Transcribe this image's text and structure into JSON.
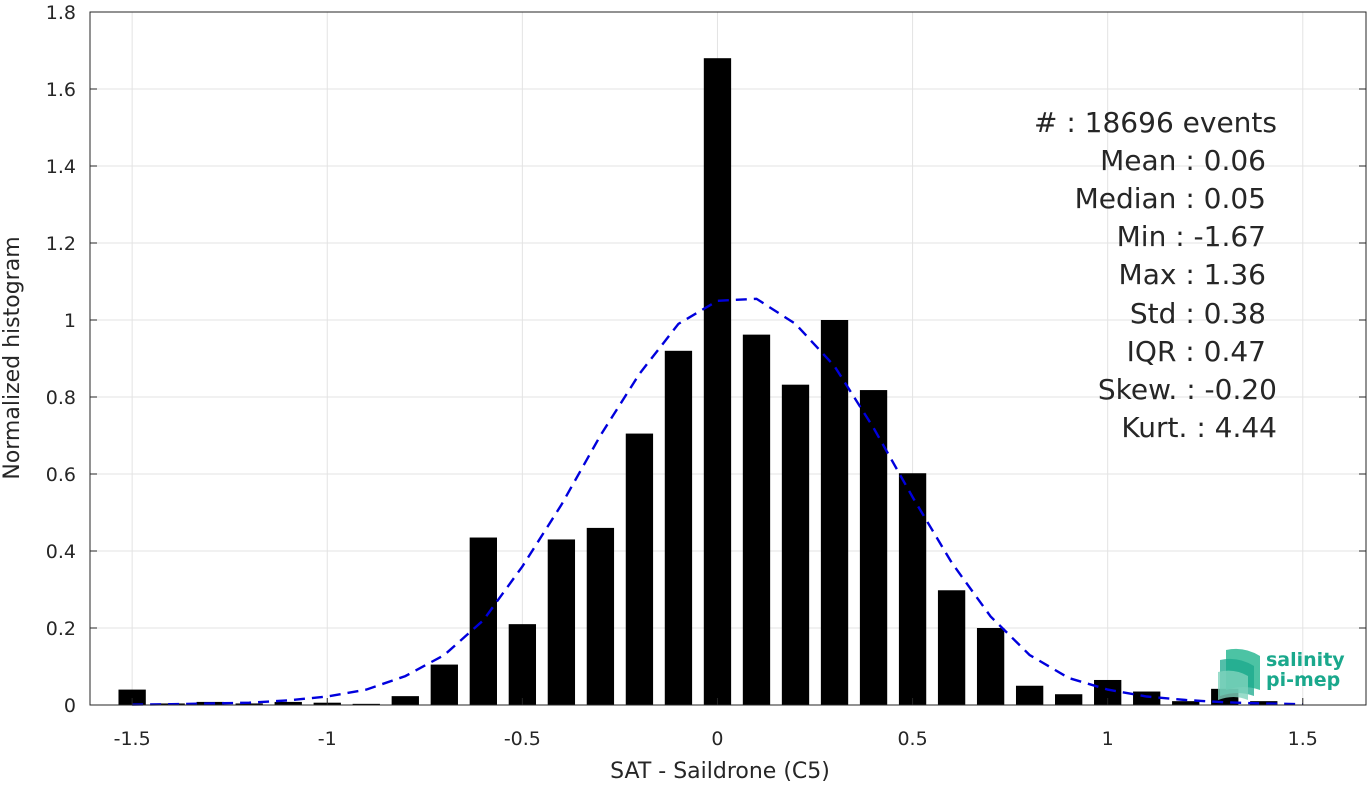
{
  "chart_data": {
    "type": "bar",
    "xlabel": "SAT - Saildrone (C5)",
    "ylabel": "Normalized histogram",
    "xlim": [
      -1.5,
      1.5
    ],
    "ylim": [
      0,
      1.8
    ],
    "xticks": [
      -1.5,
      -1,
      -0.5,
      0,
      0.5,
      1,
      1.5
    ],
    "xtick_labels": [
      "-1.5",
      "-1",
      "-0.5",
      "0",
      "0.5",
      "1",
      "1.5"
    ],
    "yticks": [
      0,
      0.2,
      0.4,
      0.6,
      0.8,
      1,
      1.2,
      1.4,
      1.6,
      1.8
    ],
    "ytick_labels": [
      "0",
      "0.2",
      "0.4",
      "0.6",
      "0.8",
      "1",
      "1.2",
      "1.4",
      "1.6",
      "1.8"
    ],
    "grid": true,
    "bar_width": 0.07,
    "bar_color": "#000000",
    "histogram": {
      "x": [
        -1.5,
        -1.4,
        -1.3,
        -1.2,
        -1.1,
        -1.0,
        -0.9,
        -0.8,
        -0.7,
        -0.6,
        -0.5,
        -0.4,
        -0.3,
        -0.2,
        -0.1,
        0.0,
        0.1,
        0.2,
        0.3,
        0.4,
        0.5,
        0.6,
        0.7,
        0.8,
        0.9,
        1.0,
        1.1,
        1.2,
        1.3,
        1.4
      ],
      "values": [
        0.04,
        0.004,
        0.008,
        0.004,
        0.008,
        0.006,
        0.003,
        0.023,
        0.105,
        0.435,
        0.21,
        0.43,
        0.46,
        0.705,
        0.92,
        1.68,
        0.962,
        0.832,
        1.0,
        0.818,
        0.602,
        0.298,
        0.2,
        0.05,
        0.028,
        0.065,
        0.035,
        0.01,
        0.042,
        0.01
      ]
    },
    "fit_curve": {
      "color": "#0000dd",
      "style": "dashed",
      "x": [
        -1.5,
        -1.4,
        -1.3,
        -1.2,
        -1.1,
        -1.0,
        -0.9,
        -0.8,
        -0.7,
        -0.6,
        -0.5,
        -0.4,
        -0.3,
        -0.2,
        -0.1,
        0.0,
        0.1,
        0.2,
        0.3,
        0.4,
        0.5,
        0.6,
        0.7,
        0.8,
        0.9,
        1.0,
        1.1,
        1.2,
        1.3,
        1.4,
        1.5
      ],
      "values": [
        0.001,
        0.002,
        0.004,
        0.006,
        0.012,
        0.022,
        0.04,
        0.075,
        0.13,
        0.22,
        0.36,
        0.52,
        0.7,
        0.86,
        0.99,
        1.05,
        1.055,
        0.99,
        0.88,
        0.72,
        0.54,
        0.37,
        0.23,
        0.13,
        0.07,
        0.04,
        0.022,
        0.013,
        0.007,
        0.004,
        0.002
      ]
    }
  },
  "stats": {
    "events": "#  : 18696 events",
    "mean": "Mean : 0.06",
    "median": "Median : 0.05",
    "min": "Min : -1.67",
    "max": "Max : 1.36",
    "std": "Std : 0.38",
    "iqr": "IQR : 0.47",
    "skew": "Skew. : -0.20",
    "kurt": "Kurt. : 4.44"
  },
  "logo": {
    "line1": "salinity",
    "line2": "pi-mep",
    "color": "#1aa88c"
  }
}
